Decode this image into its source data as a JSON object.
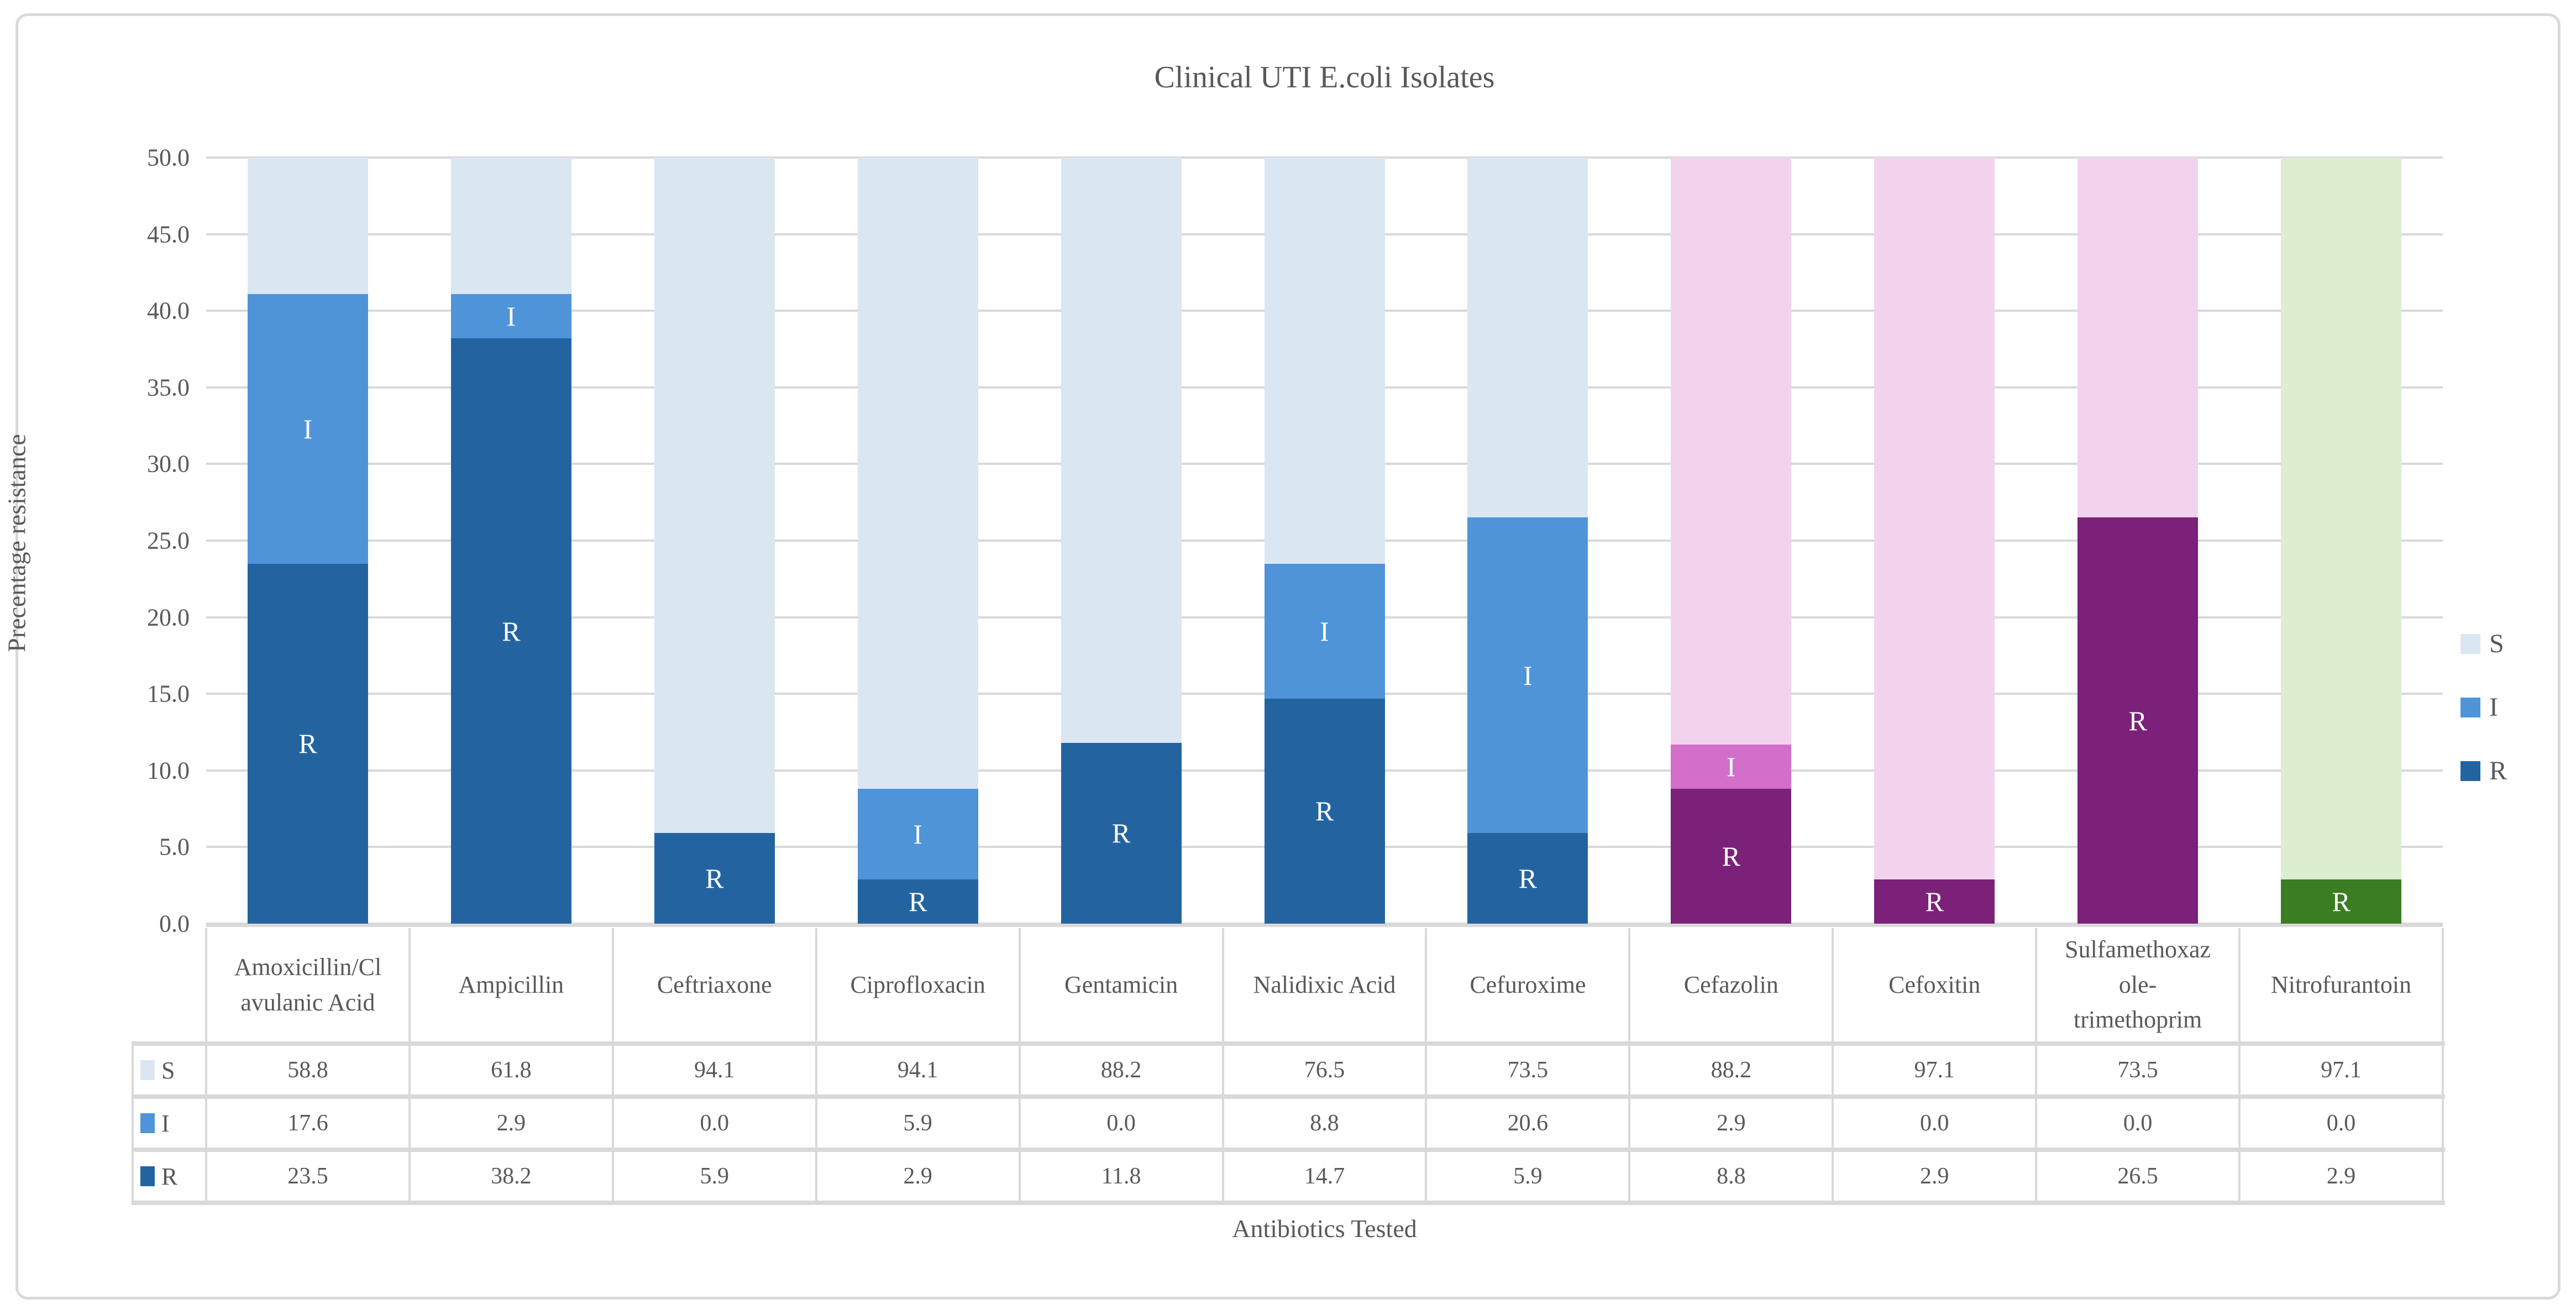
{
  "title": "Clinical UTI E.coli Isolates",
  "axes": {
    "y_label": "Precentage resistance",
    "x_label": "Antibiotics Tested",
    "y_tick_labels": [
      "0.0",
      "5.0",
      "10.0",
      "15.0",
      "20.0",
      "25.0",
      "30.0",
      "35.0",
      "40.0",
      "45.0",
      "50.0"
    ]
  },
  "legend": [
    {
      "label": "S",
      "color": "#dbe6f3"
    },
    {
      "label": "I",
      "color": "#4f94d8"
    },
    {
      "label": "R",
      "color": "#2364a0"
    }
  ],
  "chart_data": {
    "type": "bar",
    "stacked": true,
    "title": "Clinical UTI E.coli Isolates",
    "xlabel": "Antibiotics Tested",
    "ylabel": "Precentage resistance",
    "ylim": [
      0,
      50
    ],
    "ytick_step": 5,
    "grid": "horizontal",
    "legend_position": "right",
    "note": "Bars are clipped at y=50; S segment fills from top of I+R stack to 50. White letters I and R label segments with value > 0.",
    "categories": [
      "Amoxicillin/Clavulanic Acid",
      "Ampicillin",
      "Ceftriaxone",
      "Ciprofloxacin",
      "Gentamicin",
      "Nalidixic Acid",
      "Cefuroxime",
      "Cefazolin",
      "Cefoxitin",
      "Sulfamethoxazole-trimethoprim",
      "Nitrofurantoin"
    ],
    "series": [
      {
        "name": "S",
        "values": [
          58.8,
          61.8,
          94.1,
          94.1,
          88.2,
          76.5,
          73.5,
          88.2,
          97.1,
          73.5,
          97.1
        ]
      },
      {
        "name": "I",
        "values": [
          17.6,
          2.9,
          0.0,
          5.9,
          0.0,
          8.8,
          20.6,
          2.9,
          0.0,
          0.0,
          0.0
        ]
      },
      {
        "name": "R",
        "values": [
          23.5,
          38.2,
          5.9,
          2.9,
          11.8,
          14.7,
          5.9,
          8.8,
          2.9,
          26.5,
          2.9
        ]
      }
    ],
    "color_schemes": {
      "blue": {
        "S": "#dbe6f3",
        "I": "#4f94d8",
        "R": "#2364a0"
      },
      "pink": {
        "S": "#f2d3ee",
        "I": "#d26fcb",
        "R": "#7b2179"
      },
      "green": {
        "S": "#dceecf",
        "I": "#86bf6b",
        "R": "#3b7d23"
      }
    },
    "category_schemes": [
      "blue",
      "blue",
      "blue",
      "blue",
      "blue",
      "blue",
      "blue",
      "pink",
      "pink",
      "pink",
      "green"
    ]
  },
  "table": {
    "row_headers": [
      "S",
      "I",
      "R"
    ],
    "columns_display": [
      "Amoxicillin/Cl\navulanic Acid",
      "Ampicillin",
      "Ceftriaxone",
      "Ciprofloxacin",
      "Gentamicin",
      "Nalidixic Acid",
      "Cefuroxime",
      "Cefazolin",
      "Cefoxitin",
      "Sulfamethoxaz\nole-\ntrimethoprim",
      "Nitrofurantoin"
    ],
    "values": {
      "S": [
        "58.8",
        "61.8",
        "94.1",
        "94.1",
        "88.2",
        "76.5",
        "73.5",
        "88.2",
        "97.1",
        "73.5",
        "97.1"
      ],
      "I": [
        "17.6",
        "2.9",
        "0.0",
        "5.9",
        "0.0",
        "8.8",
        "20.6",
        "2.9",
        "0.0",
        "0.0",
        "0.0"
      ],
      "R": [
        "23.5",
        "38.2",
        "5.9",
        "2.9",
        "11.8",
        "14.7",
        "5.9",
        "8.8",
        "2.9",
        "26.5",
        "2.9"
      ]
    }
  },
  "colors": {
    "grid": "#d9d9d9",
    "text": "#595959",
    "bar_label_text": "#ffffff",
    "background": "#ffffff"
  }
}
